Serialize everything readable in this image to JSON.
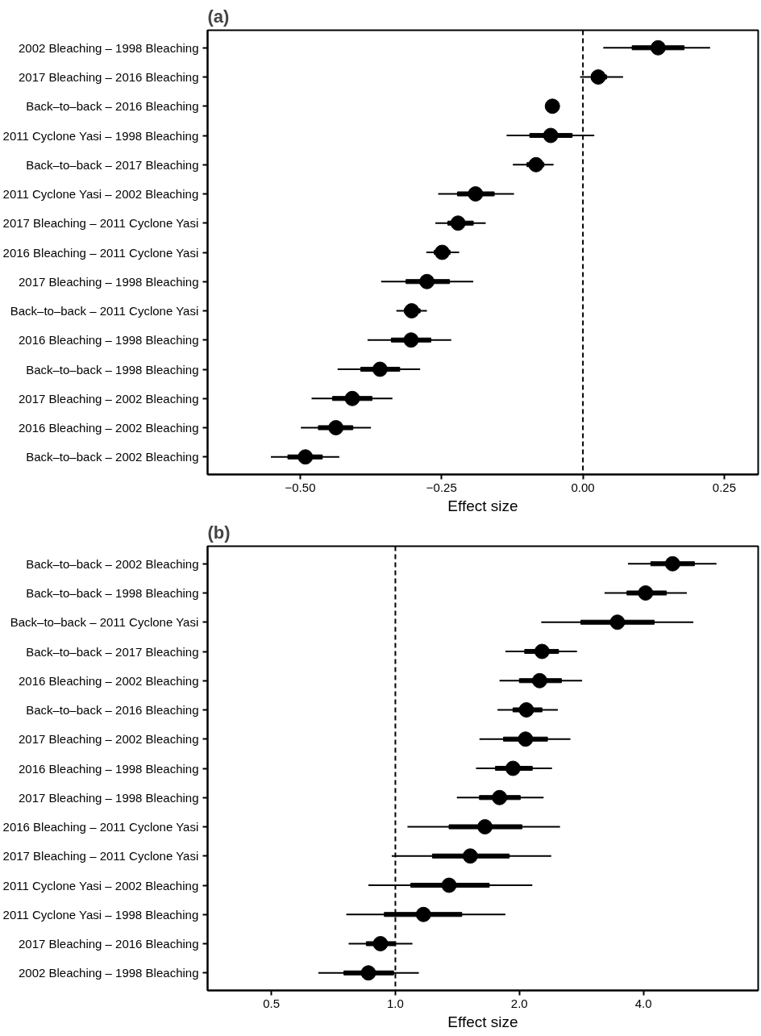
{
  "chart_data": [
    {
      "type": "box",
      "orientation": "horizontal",
      "title": "(a)",
      "xlabel": "Effect size",
      "marker": "circle",
      "grid": false,
      "categories": [
        "2002 Bleaching – 1998 Bleaching",
        "2017 Bleaching – 2016 Bleaching",
        "Back–to–back – 2016 Bleaching",
        "2011 Cyclone Yasi – 1998 Bleaching",
        "Back–to–back – 2017 Bleaching",
        "2011 Cyclone Yasi – 2002 Bleaching",
        "2017 Bleaching – 2011 Cyclone Yasi",
        "2016 Bleaching – 2011 Cyclone Yasi",
        "2017 Bleaching – 1998 Bleaching",
        "Back–to–back – 2011 Cyclone Yasi",
        "2016 Bleaching – 1998 Bleaching",
        "Back–to–back – 1998 Bleaching",
        "2017 Bleaching – 2002 Bleaching",
        "2016 Bleaching – 2002 Bleaching",
        "Back–to–back – 2002 Bleaching"
      ],
      "boxes": [
        {
          "low": 0.036,
          "q1": 0.087,
          "median": 0.133,
          "q3": 0.179,
          "high": 0.225
        },
        {
          "low": -0.005,
          "q1": 0.015,
          "median": 0.027,
          "q3": 0.042,
          "high": 0.071
        },
        {
          "low": -0.064,
          "q1": -0.06,
          "median": -0.054,
          "q3": -0.049,
          "high": -0.044
        },
        {
          "low": -0.135,
          "q1": -0.094,
          "median": -0.057,
          "q3": -0.019,
          "high": 0.02
        },
        {
          "low": -0.124,
          "q1": -0.099,
          "median": -0.083,
          "q3": -0.069,
          "high": -0.052
        },
        {
          "low": -0.256,
          "q1": -0.222,
          "median": -0.19,
          "q3": -0.157,
          "high": -0.122
        },
        {
          "low": -0.261,
          "q1": -0.239,
          "median": -0.221,
          "q3": -0.194,
          "high": -0.172
        },
        {
          "low": -0.277,
          "q1": -0.263,
          "median": -0.249,
          "q3": -0.235,
          "high": -0.219
        },
        {
          "low": -0.357,
          "q1": -0.313,
          "median": -0.276,
          "q3": -0.236,
          "high": -0.194
        },
        {
          "low": -0.33,
          "q1": -0.316,
          "median": -0.303,
          "q3": -0.288,
          "high": -0.276
        },
        {
          "low": -0.381,
          "q1": -0.339,
          "median": -0.304,
          "q3": -0.269,
          "high": -0.233
        },
        {
          "low": -0.434,
          "q1": -0.393,
          "median": -0.359,
          "q3": -0.324,
          "high": -0.288
        },
        {
          "low": -0.48,
          "q1": -0.443,
          "median": -0.408,
          "q3": -0.373,
          "high": -0.337
        },
        {
          "low": -0.499,
          "q1": -0.468,
          "median": -0.437,
          "q3": -0.407,
          "high": -0.375
        },
        {
          "low": -0.552,
          "q1": -0.522,
          "median": -0.491,
          "q3": -0.461,
          "high": -0.431
        }
      ],
      "xlim": [
        -0.664,
        0.31
      ],
      "xticks": [
        {
          "value": -0.5,
          "label": "−0.50"
        },
        {
          "value": -0.25,
          "label": "−0.25"
        },
        {
          "value": 0,
          "label": "0.00"
        },
        {
          "value": 0.25,
          "label": "0.25"
        }
      ],
      "ref_lines": [
        {
          "axis": "x",
          "value": 0,
          "line_style": "dashed",
          "color": "#000000"
        }
      ]
    },
    {
      "type": "box",
      "orientation": "horizontal",
      "title": "(b)",
      "xlabel": "Effect size",
      "marker": "circle",
      "grid": false,
      "log": "x",
      "categories": [
        "Back–to–back – 2002 Bleaching",
        "Back–to–back – 1998 Bleaching",
        "Back–to–back – 2011 Cyclone Yasi",
        "Back–to–back – 2017 Bleaching",
        "2016 Bleaching – 2002 Bleaching",
        "Back–to–back – 2016 Bleaching",
        "2017 Bleaching – 2002 Bleaching",
        "2016 Bleaching – 1998 Bleaching",
        "2017 Bleaching – 1998 Bleaching",
        "2016 Bleaching – 2011 Cyclone Yasi",
        "2017 Bleaching – 2011 Cyclone Yasi",
        "2011 Cyclone Yasi – 2002 Bleaching",
        "2011 Cyclone Yasi – 1998 Bleaching",
        "2017 Bleaching – 2016 Bleaching",
        "2002 Bleaching – 1998 Bleaching"
      ],
      "boxes": [
        {
          "low": 3.67,
          "q1": 4.17,
          "median": 4.71,
          "q3": 5.32,
          "high": 6.02
        },
        {
          "low": 3.22,
          "q1": 3.65,
          "median": 4.05,
          "q3": 4.55,
          "high": 5.1
        },
        {
          "low": 2.26,
          "q1": 2.82,
          "median": 3.46,
          "q3": 4.25,
          "high": 5.29
        },
        {
          "low": 1.85,
          "q1": 2.06,
          "median": 2.27,
          "q3": 2.49,
          "high": 2.76
        },
        {
          "low": 1.79,
          "q1": 2.0,
          "median": 2.24,
          "q3": 2.53,
          "high": 2.84
        },
        {
          "low": 1.77,
          "q1": 1.93,
          "median": 2.08,
          "q3": 2.27,
          "high": 2.48
        },
        {
          "low": 1.6,
          "q1": 1.83,
          "median": 2.07,
          "q3": 2.34,
          "high": 2.66
        },
        {
          "low": 1.57,
          "q1": 1.75,
          "median": 1.93,
          "q3": 2.15,
          "high": 2.4
        },
        {
          "low": 1.41,
          "q1": 1.6,
          "median": 1.79,
          "q3": 2.01,
          "high": 2.29
        },
        {
          "low": 1.07,
          "q1": 1.35,
          "median": 1.65,
          "q3": 2.03,
          "high": 2.51
        },
        {
          "low": 0.98,
          "q1": 1.23,
          "median": 1.52,
          "q3": 1.89,
          "high": 2.39
        },
        {
          "low": 0.86,
          "q1": 1.09,
          "median": 1.35,
          "q3": 1.69,
          "high": 2.15
        },
        {
          "low": 0.76,
          "q1": 0.94,
          "median": 1.17,
          "q3": 1.45,
          "high": 1.85
        },
        {
          "low": 0.77,
          "q1": 0.85,
          "median": 0.92,
          "q3": 1.0,
          "high": 1.1
        },
        {
          "low": 0.65,
          "q1": 0.75,
          "median": 0.86,
          "q3": 0.99,
          "high": 1.14
        }
      ],
      "xlim": [
        0.35,
        7.6
      ],
      "xticks": [
        {
          "value": 0.5,
          "label": "0.5"
        },
        {
          "value": 1,
          "label": "1.0"
        },
        {
          "value": 2,
          "label": "2.0"
        },
        {
          "value": 4,
          "label": "4.0"
        }
      ],
      "ref_lines": [
        {
          "axis": "x",
          "value": 1,
          "line_style": "dashed",
          "color": "#000000"
        }
      ]
    }
  ]
}
